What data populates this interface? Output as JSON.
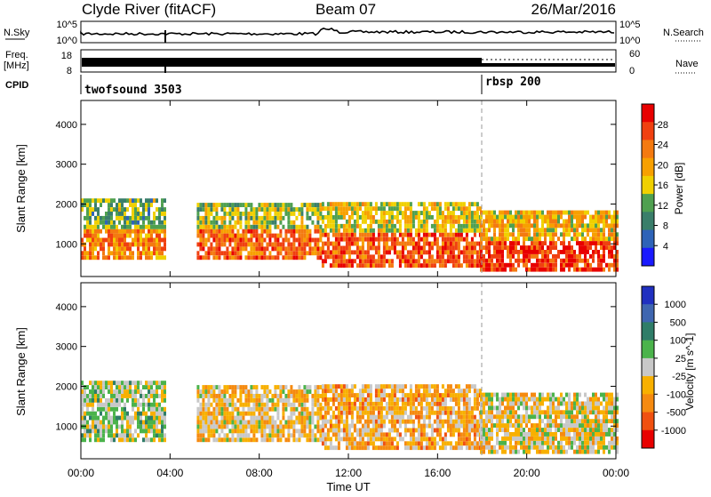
{
  "header": {
    "station": "Clyde River (fitACF)",
    "beam": "Beam 07",
    "date": "26/Mar/2016"
  },
  "status_panels": {
    "nsky_label": "N.Sky",
    "nsky_ticks": [
      "10^5",
      "10^0"
    ],
    "nsearch_label": "N.Search",
    "nsearch_ticks": [
      "10^5",
      "10^0"
    ],
    "freq_label": "Freq.",
    "freq_unit": "[MHz]",
    "freq_ticks": [
      "18",
      "8"
    ],
    "nave_label": "Nave",
    "nave_ticks": [
      "60",
      "0"
    ],
    "cpid_label": "CPID",
    "cpid_segments": [
      {
        "label": "twofsound 3503",
        "start_hour": 0,
        "end_hour": 18
      },
      {
        "label": "rbsp 200",
        "start_hour": 18,
        "end_hour": 24
      }
    ]
  },
  "x_axis": {
    "label": "Time UT",
    "ticks": [
      "00:00",
      "04:00",
      "08:00",
      "12:00",
      "16:00",
      "20:00",
      "00:00"
    ]
  },
  "colors": {
    "power_scale": [
      "#1a1aff",
      "#2e63b8",
      "#3a7e6a",
      "#4fa050",
      "#f0d000",
      "#f7a000",
      "#f47a10",
      "#f04010",
      "#e80000"
    ],
    "velocity_scale": [
      "#2030c0",
      "#3f66b0",
      "#2f7d68",
      "#4bb34b",
      "#c8c8c8",
      "#f8b000",
      "#f58a10",
      "#f05010",
      "#e80000"
    ]
  },
  "chart_data": [
    {
      "type": "heatmap",
      "title": "Power",
      "xlabel": "Time UT",
      "ylabel": "Slant Range [km]",
      "xlim": [
        0,
        24
      ],
      "ylim": [
        180,
        4600
      ],
      "y_ticks": [
        "1000",
        "2000",
        "3000",
        "4000"
      ],
      "colorbar_label": "Power [dB]",
      "colorbar_ticks": [
        "4",
        "8",
        "12",
        "16",
        "20",
        "24",
        "28"
      ],
      "colorbar_range": [
        0,
        32
      ],
      "echo_regions": [
        {
          "t_start": 0.0,
          "t_end": 3.8,
          "range_low": 600,
          "range_high": 2100,
          "value": 22
        },
        {
          "t_start": 5.2,
          "t_end": 10.8,
          "range_low": 600,
          "range_high": 2000,
          "value": 24
        },
        {
          "t_start": 10.8,
          "t_end": 17.9,
          "range_low": 400,
          "range_high": 2000,
          "value": 26
        },
        {
          "t_start": 17.9,
          "t_end": 24.0,
          "range_low": 300,
          "range_high": 1800,
          "value": 28
        }
      ]
    },
    {
      "type": "heatmap",
      "title": "Velocity",
      "xlabel": "Time UT",
      "ylabel": "Slant Range [km]",
      "xlim": [
        0,
        24
      ],
      "ylim": [
        180,
        4600
      ],
      "y_ticks": [
        "1000",
        "2000",
        "3000",
        "4000"
      ],
      "colorbar_label": "Velocity [m s^-1]",
      "colorbar_ticks": [
        "1000",
        "500",
        "100",
        "25",
        "-25",
        "-100",
        "-500",
        "-1000"
      ],
      "colorbar_range": [
        -1500,
        1500
      ],
      "echo_regions": [
        {
          "t_start": 0.0,
          "t_end": 3.8,
          "range_low": 600,
          "range_high": 2100,
          "value": 80
        },
        {
          "t_start": 5.2,
          "t_end": 10.8,
          "range_low": 600,
          "range_high": 2000,
          "value": -250
        },
        {
          "t_start": 10.8,
          "t_end": 17.9,
          "range_low": 400,
          "range_high": 2000,
          "value": -400
        },
        {
          "t_start": 17.9,
          "t_end": 24.0,
          "range_low": 300,
          "range_high": 1800,
          "value": -150
        }
      ]
    }
  ]
}
